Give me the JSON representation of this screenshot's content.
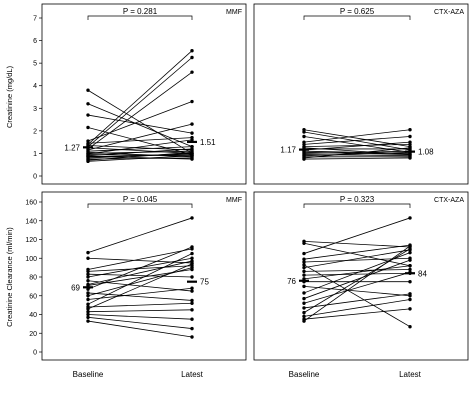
{
  "caption_fragment": "",
  "chart_data": [
    {
      "type": "line",
      "group_label": "MMF",
      "p_value": "P = 0.281",
      "ylabel": "Creatinine (mg/dL)",
      "categories": [
        "Baseline",
        "Latest"
      ],
      "yticks": [
        0,
        1,
        2,
        3,
        4,
        5,
        6,
        7
      ],
      "ylim": [
        0,
        7
      ],
      "median_labels": {
        "baseline": "1.27",
        "latest": "1.51"
      },
      "medians": [
        1.27,
        1.51
      ],
      "series": [
        {
          "values": [
            3.8,
            1.0
          ]
        },
        {
          "values": [
            3.2,
            1.3
          ]
        },
        {
          "values": [
            2.7,
            1.9
          ]
        },
        {
          "values": [
            2.15,
            0.95
          ]
        },
        {
          "values": [
            1.55,
            3.3
          ]
        },
        {
          "values": [
            1.4,
            5.55
          ]
        },
        {
          "values": [
            1.3,
            5.25
          ]
        },
        {
          "values": [
            1.2,
            4.6
          ]
        },
        {
          "values": [
            1.15,
            2.3
          ]
        },
        {
          "values": [
            1.35,
            1.15
          ]
        },
        {
          "values": [
            1.1,
            1.3
          ]
        },
        {
          "values": [
            1.05,
            0.85
          ]
        },
        {
          "values": [
            1.0,
            1.1
          ]
        },
        {
          "values": [
            0.95,
            0.9
          ]
        },
        {
          "values": [
            0.9,
            1.2
          ]
        },
        {
          "values": [
            0.85,
            0.95
          ]
        },
        {
          "values": [
            0.8,
            1.0
          ]
        },
        {
          "values": [
            0.75,
            0.8
          ]
        },
        {
          "values": [
            0.7,
            1.05
          ]
        },
        {
          "values": [
            0.65,
            0.9
          ]
        },
        {
          "values": [
            1.25,
            1.0
          ]
        },
        {
          "values": [
            1.45,
            1.7
          ]
        },
        {
          "values": [
            0.98,
            1.6
          ]
        },
        {
          "values": [
            0.88,
            0.75
          ]
        }
      ]
    },
    {
      "type": "line",
      "group_label": "CTX-AZA",
      "p_value": "P = 0.625",
      "ylabel": "",
      "categories": [
        "Baseline",
        "Latest"
      ],
      "yticks": [
        0,
        1,
        2,
        3,
        4,
        5,
        6,
        7
      ],
      "ylim": [
        0,
        7
      ],
      "median_labels": {
        "baseline": "1.17",
        "latest": "1.08"
      },
      "medians": [
        1.17,
        1.08
      ],
      "series": [
        {
          "values": [
            2.05,
            1.3
          ]
        },
        {
          "values": [
            1.95,
            1.15
          ]
        },
        {
          "values": [
            1.75,
            1.05
          ]
        },
        {
          "values": [
            1.5,
            2.05
          ]
        },
        {
          "values": [
            1.4,
            1.75
          ]
        },
        {
          "values": [
            1.3,
            1.4
          ]
        },
        {
          "values": [
            1.2,
            1.2
          ]
        },
        {
          "values": [
            1.1,
            1.0
          ]
        },
        {
          "values": [
            1.05,
            0.95
          ]
        },
        {
          "values": [
            1.0,
            1.1
          ]
        },
        {
          "values": [
            0.95,
            0.9
          ]
        },
        {
          "values": [
            0.9,
            1.05
          ]
        },
        {
          "values": [
            0.85,
            0.85
          ]
        },
        {
          "values": [
            0.8,
            1.25
          ]
        },
        {
          "values": [
            0.75,
            0.8
          ]
        },
        {
          "values": [
            1.25,
            0.95
          ]
        },
        {
          "values": [
            1.15,
            1.5
          ]
        }
      ]
    },
    {
      "type": "line",
      "group_label": "MMF",
      "p_value": "P = 0.045",
      "ylabel": "Creatinine Clearance (ml/min)",
      "categories": [
        "Baseline",
        "Latest"
      ],
      "yticks": [
        0,
        20,
        40,
        60,
        80,
        100,
        120,
        140,
        160
      ],
      "ylim": [
        0,
        160
      ],
      "median_labels": {
        "baseline": "69",
        "latest": "75"
      },
      "medians": [
        69,
        75
      ],
      "series": [
        {
          "values": [
            106,
            143
          ]
        },
        {
          "values": [
            100,
            95
          ]
        },
        {
          "values": [
            88,
            110
          ]
        },
        {
          "values": [
            86,
            92
          ]
        },
        {
          "values": [
            83,
            80
          ]
        },
        {
          "values": [
            80,
            100
          ]
        },
        {
          "values": [
            76,
            65
          ]
        },
        {
          "values": [
            71,
            88
          ]
        },
        {
          "values": [
            67,
            112
          ]
        },
        {
          "values": [
            63,
            55
          ]
        },
        {
          "values": [
            60,
            90
          ]
        },
        {
          "values": [
            56,
            68
          ]
        },
        {
          "values": [
            51,
            105
          ]
        },
        {
          "values": [
            46,
            94
          ]
        },
        {
          "values": [
            43,
            45
          ]
        },
        {
          "values": [
            40,
            35
          ]
        },
        {
          "values": [
            37,
            25
          ]
        },
        {
          "values": [
            33,
            16
          ]
        },
        {
          "values": [
            48,
            52
          ]
        },
        {
          "values": [
            72,
            97
          ]
        }
      ]
    },
    {
      "type": "line",
      "group_label": "CTX-AZA",
      "p_value": "P = 0.323",
      "ylabel": "",
      "categories": [
        "Baseline",
        "Latest"
      ],
      "yticks": [
        0,
        20,
        40,
        60,
        80,
        100,
        120,
        140,
        160
      ],
      "ylim": [
        0,
        160
      ],
      "median_labels": {
        "baseline": "76",
        "latest": "84"
      },
      "medians": [
        76,
        84
      ],
      "series": [
        {
          "values": [
            118,
            112
          ]
        },
        {
          "values": [
            116,
            92
          ]
        },
        {
          "values": [
            105,
            143
          ]
        },
        {
          "values": [
            99,
            114
          ]
        },
        {
          "values": [
            96,
            100
          ]
        },
        {
          "values": [
            93,
            27
          ]
        },
        {
          "values": [
            90,
            109
          ]
        },
        {
          "values": [
            86,
            88
          ]
        },
        {
          "values": [
            82,
            84
          ]
        },
        {
          "values": [
            78,
            92
          ]
        },
        {
          "values": [
            75,
            75
          ]
        },
        {
          "values": [
            70,
            60
          ]
        },
        {
          "values": [
            63,
            106
          ]
        },
        {
          "values": [
            57,
            98
          ]
        },
        {
          "values": [
            52,
            85
          ]
        },
        {
          "values": [
            47,
            62
          ]
        },
        {
          "values": [
            42,
            110
          ]
        },
        {
          "values": [
            38,
            56
          ]
        },
        {
          "values": [
            35,
            46
          ]
        },
        {
          "values": [
            33,
            113
          ]
        }
      ]
    }
  ]
}
